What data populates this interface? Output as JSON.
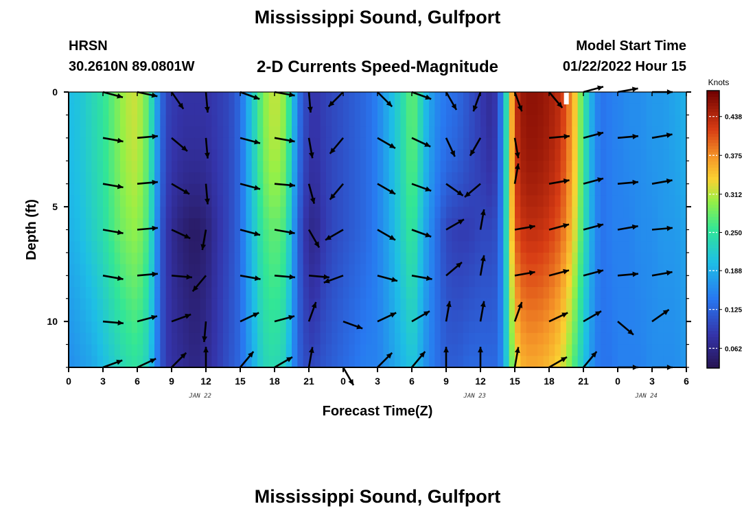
{
  "header": {
    "title": "Mississippi Sound, Gulfport",
    "station": "HRSN",
    "coords": "30.2610N  89.0801W",
    "subtitle": "2-D Currents Speed-Magnitude",
    "model_label": "Model Start Time",
    "model_time": "01/22/2022 Hour 15"
  },
  "footer": {
    "title": "Mississippi Sound, Gulfport"
  },
  "chart_data": {
    "type": "heatmap",
    "title": "2-D Currents Speed-Magnitude",
    "xlabel": "Forecast Time(Z)",
    "ylabel": "Depth (ft)",
    "x_tick_labels": [
      "0",
      "3",
      "6",
      "9",
      "12",
      "15",
      "18",
      "21",
      "0",
      "3",
      "6",
      "9",
      "12",
      "15",
      "18",
      "21",
      "0",
      "3",
      "6"
    ],
    "date_labels": [
      {
        "label": "JAN 22",
        "hours": 11.5
      },
      {
        "label": "JAN 23",
        "hours": 35.5
      },
      {
        "label": "JAN 24",
        "hours": 50.5
      }
    ],
    "x_range_hours": [
      0,
      54
    ],
    "y_tick_labels": [
      "0",
      "5",
      "10"
    ],
    "ylim": [
      0,
      12
    ],
    "colorbar": {
      "label": "Knots",
      "ticks": [
        "0.438",
        "0.375",
        "0.312",
        "0.250",
        "0.188",
        "0.125",
        "0.062"
      ],
      "range": [
        0.03,
        0.48
      ]
    },
    "profile_depths": [
      0,
      2,
      4,
      6,
      8,
      10,
      12
    ],
    "speed_profile": {
      "hours": [
        0,
        1,
        2,
        3,
        4,
        5,
        6,
        7,
        7.5,
        8,
        8.5,
        9,
        10,
        11,
        12,
        13,
        14,
        15,
        16,
        17,
        18,
        19,
        19.5,
        20,
        20.5,
        21,
        21.5,
        22,
        23,
        24,
        25,
        26,
        27,
        28,
        29,
        30,
        30.5,
        31,
        32,
        33,
        34,
        35,
        36,
        37,
        37.5,
        38,
        38.5,
        39,
        39.5,
        40,
        41,
        42,
        43,
        44,
        45,
        46,
        46.5,
        47,
        47.5,
        48,
        49,
        50,
        51,
        52,
        53,
        54
      ],
      "surface": [
        0.2,
        0.21,
        0.23,
        0.25,
        0.28,
        0.31,
        0.32,
        0.27,
        0.2,
        0.14,
        0.1,
        0.09,
        0.08,
        0.08,
        0.08,
        0.09,
        0.1,
        0.13,
        0.21,
        0.29,
        0.32,
        0.29,
        0.22,
        0.15,
        0.11,
        0.09,
        0.08,
        0.09,
        0.1,
        0.11,
        0.12,
        0.13,
        0.15,
        0.19,
        0.23,
        0.28,
        0.26,
        0.21,
        0.16,
        0.14,
        0.13,
        0.11,
        0.09,
        0.07,
        0.1,
        0.17,
        0.3,
        0.42,
        0.45,
        0.46,
        0.46,
        0.45,
        0.43,
        0.37,
        0.26,
        0.16,
        0.14,
        0.14,
        0.15,
        0.15,
        0.16,
        0.16,
        0.17,
        0.17,
        0.18,
        0.19
      ],
      "mid": [
        0.19,
        0.2,
        0.22,
        0.24,
        0.27,
        0.29,
        0.3,
        0.26,
        0.19,
        0.12,
        0.09,
        0.07,
        0.05,
        0.04,
        0.05,
        0.08,
        0.1,
        0.13,
        0.2,
        0.26,
        0.28,
        0.26,
        0.19,
        0.13,
        0.09,
        0.07,
        0.06,
        0.08,
        0.1,
        0.11,
        0.12,
        0.13,
        0.15,
        0.18,
        0.22,
        0.26,
        0.23,
        0.19,
        0.14,
        0.1,
        0.09,
        0.09,
        0.1,
        0.1,
        0.11,
        0.17,
        0.29,
        0.4,
        0.42,
        0.43,
        0.43,
        0.42,
        0.4,
        0.35,
        0.25,
        0.16,
        0.14,
        0.14,
        0.15,
        0.15,
        0.15,
        0.16,
        0.16,
        0.17,
        0.17,
        0.18
      ],
      "bottom": [
        0.16,
        0.17,
        0.18,
        0.2,
        0.22,
        0.24,
        0.25,
        0.22,
        0.17,
        0.12,
        0.09,
        0.08,
        0.07,
        0.06,
        0.07,
        0.09,
        0.11,
        0.13,
        0.18,
        0.23,
        0.24,
        0.22,
        0.17,
        0.13,
        0.11,
        0.1,
        0.1,
        0.11,
        0.12,
        0.13,
        0.14,
        0.15,
        0.15,
        0.17,
        0.19,
        0.21,
        0.2,
        0.17,
        0.14,
        0.12,
        0.12,
        0.13,
        0.13,
        0.13,
        0.13,
        0.17,
        0.25,
        0.32,
        0.35,
        0.36,
        0.36,
        0.35,
        0.33,
        0.28,
        0.21,
        0.15,
        0.14,
        0.14,
        0.14,
        0.15,
        0.15,
        0.15,
        0.16,
        0.16,
        0.16,
        0.17
      ]
    },
    "vector_hours": [
      3,
      6,
      9,
      12,
      15,
      18,
      21,
      24,
      27,
      30,
      33,
      36,
      39,
      42,
      45,
      48,
      51
    ],
    "vector_angles_deg": [
      [
        15,
        12,
        55,
        85,
        20,
        10,
        85,
        135,
        45,
        20,
        60,
        110,
        70,
        50,
        -15,
        -10,
        0
      ],
      [
        10,
        -5,
        40,
        85,
        15,
        10,
        80,
        130,
        30,
        25,
        65,
        120,
        80,
        -5,
        -15,
        -5,
        -10
      ],
      [
        10,
        -5,
        30,
        85,
        15,
        5,
        75,
        130,
        30,
        20,
        35,
        140,
        -80,
        -10,
        -15,
        -5,
        -10
      ],
      [
        10,
        -5,
        25,
        100,
        15,
        10,
        60,
        150,
        30,
        20,
        -30,
        -80,
        -10,
        -15,
        -15,
        -10,
        -5
      ],
      [
        10,
        -5,
        5,
        130,
        10,
        5,
        5,
        160,
        15,
        10,
        -40,
        -80,
        -10,
        -15,
        -15,
        -5,
        -10
      ],
      [
        5,
        -15,
        -20,
        95,
        -25,
        -15,
        -70,
        20,
        -25,
        -30,
        -80,
        -80,
        -70,
        -25,
        -30,
        40,
        -35
      ],
      [
        -20,
        -25,
        -45,
        -90,
        -50,
        -30,
        -80,
        60,
        -45,
        -50,
        -90,
        -90,
        -80,
        -30,
        -50,
        0,
        0
      ]
    ]
  }
}
